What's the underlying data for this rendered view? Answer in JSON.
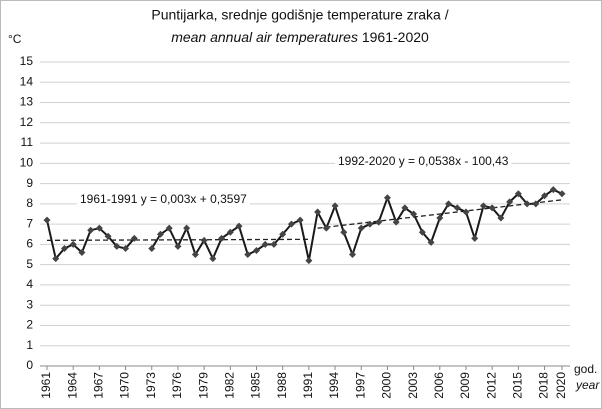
{
  "chart_data": {
    "type": "line",
    "title": "Puntijarka, srednje godišnje temperature zraka /",
    "title_italic": "mean annual air temperatures",
    "title_end": "1961-2020",
    "y_unit": "°C",
    "x_label": "god.",
    "x_label_italic": "year",
    "x": [
      1961,
      1962,
      1963,
      1964,
      1965,
      1966,
      1967,
      1968,
      1969,
      1970,
      1971,
      1972,
      1973,
      1974,
      1975,
      1976,
      1977,
      1978,
      1979,
      1980,
      1981,
      1982,
      1983,
      1984,
      1985,
      1986,
      1987,
      1988,
      1989,
      1990,
      1991,
      1992,
      1993,
      1994,
      1995,
      1996,
      1997,
      1998,
      1999,
      2000,
      2001,
      2002,
      2003,
      2004,
      2005,
      2006,
      2007,
      2008,
      2009,
      2010,
      2011,
      2012,
      2013,
      2014,
      2015,
      2016,
      2017,
      2018,
      2019,
      2020
    ],
    "series": [
      {
        "color": "#1a1a1a",
        "values": [
          7.2,
          5.3,
          5.8,
          6.0,
          5.6,
          6.7,
          6.8,
          6.4,
          5.9,
          5.8,
          6.3,
          null,
          5.8,
          6.5,
          6.8,
          5.9,
          6.8,
          5.5,
          6.2,
          5.3,
          6.3,
          6.6,
          6.9,
          5.5,
          5.7,
          6.0,
          6.0,
          6.5,
          7.0,
          7.2,
          5.2,
          7.6,
          6.8,
          7.9,
          6.6,
          5.5,
          6.8,
          7.0,
          7.1,
          8.3,
          7.1,
          7.8,
          7.5,
          6.6,
          6.1,
          7.3,
          8.0,
          7.8,
          7.6,
          6.3,
          7.9,
          7.8,
          7.3,
          8.1,
          8.5,
          8.0,
          8.0,
          8.4,
          8.7,
          8.5
        ]
      }
    ],
    "trendlines": [
      {
        "label": "1961-1991 y = 0,003x + 0,3597",
        "x": [
          1961,
          1991
        ],
        "values": [
          6.2,
          6.25
        ]
      },
      {
        "label": "1992-2020 y = 0,0538x - 100,43",
        "x": [
          1992,
          2020
        ],
        "values": [
          6.8,
          8.2
        ]
      }
    ],
    "xlim": [
      1961,
      2020
    ],
    "xticks": [
      1961,
      1964,
      1967,
      1970,
      1973,
      1976,
      1979,
      1982,
      1985,
      1988,
      1991,
      1994,
      1997,
      2000,
      2003,
      2006,
      2009,
      2012,
      2015,
      2018,
      2020
    ],
    "ylim": [
      0,
      15
    ],
    "yticks": [
      0,
      1,
      2,
      3,
      4,
      5,
      6,
      7,
      8,
      9,
      10,
      11,
      12,
      13,
      14,
      15
    ],
    "grid": true
  }
}
